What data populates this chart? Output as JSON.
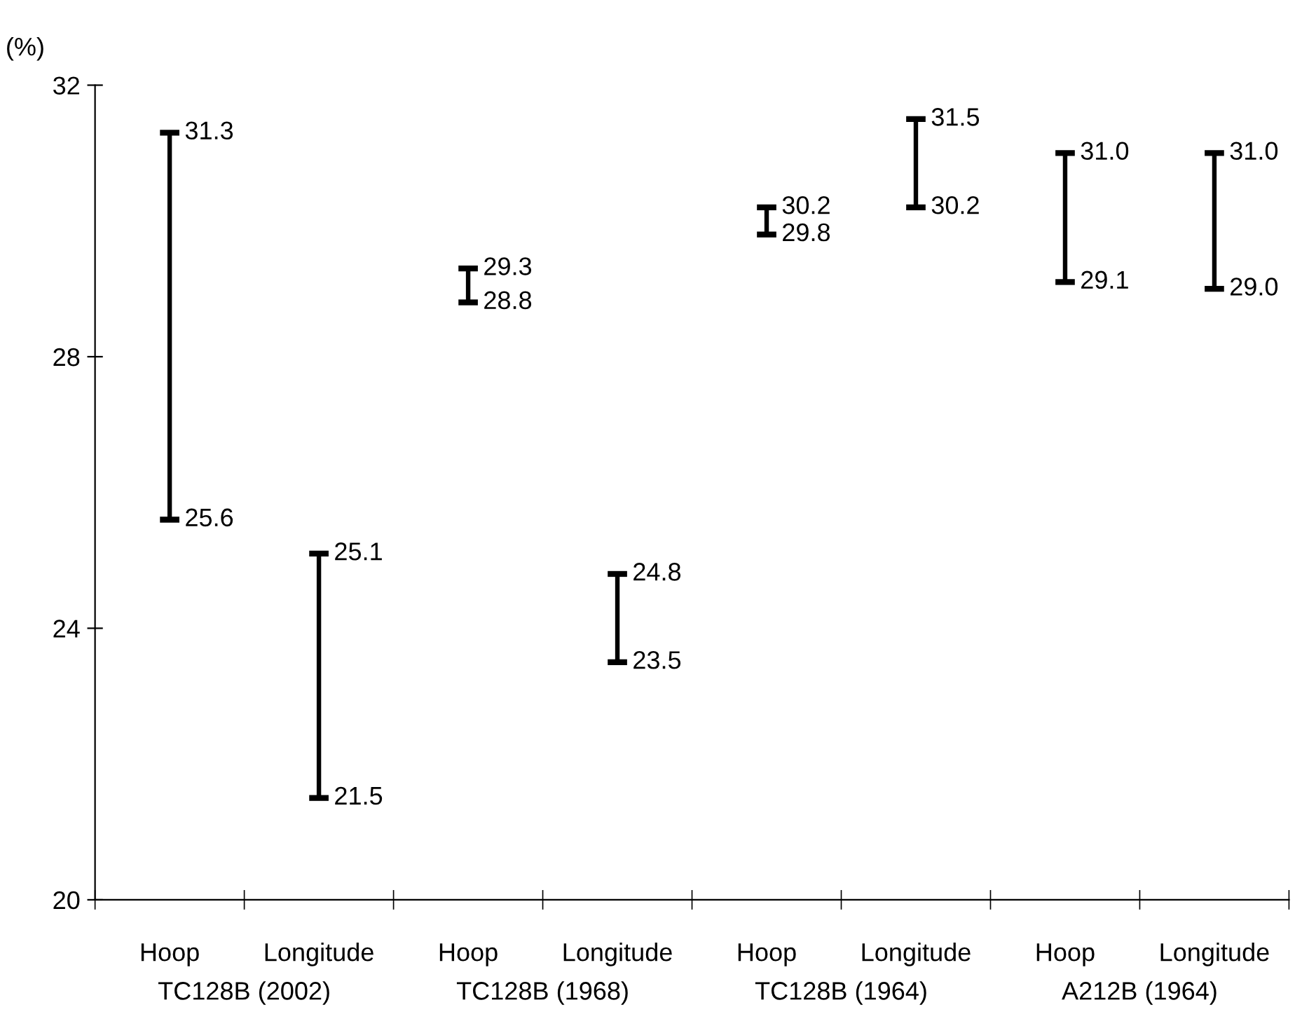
{
  "chart_data": {
    "type": "bar",
    "ylabel": "(%)",
    "categories": [
      "Hoop",
      "Longitude",
      "Hoop",
      "Longitude",
      "Hoop",
      "Longitude",
      "Hoop",
      "Longitude"
    ],
    "base": [
      25.6,
      21.5,
      28.8,
      23.5,
      29.8,
      30.2,
      29.1,
      29.0
    ],
    "values": [
      5.7,
      3.6,
      0.5,
      1.3,
      0.4,
      1.3,
      1.9,
      2.0
    ],
    "color": "#000000",
    "ylim": [
      20,
      32
    ],
    "yticks": [
      20,
      24,
      28,
      32
    ],
    "grid": false,
    "legend": false,
    "annotations": [
      "31.3",
      "25.6",
      "25.1",
      "21.5",
      "29.3",
      "28.8",
      "24.8",
      "23.5",
      "30.2",
      "29.8",
      "31.5",
      "30.2",
      "31.0",
      "29.1",
      "31.0",
      "29.0",
      "TC128B (2002)",
      "TC128B (1968)",
      "TC128B (1964)",
      "A212B (1964)"
    ]
  }
}
